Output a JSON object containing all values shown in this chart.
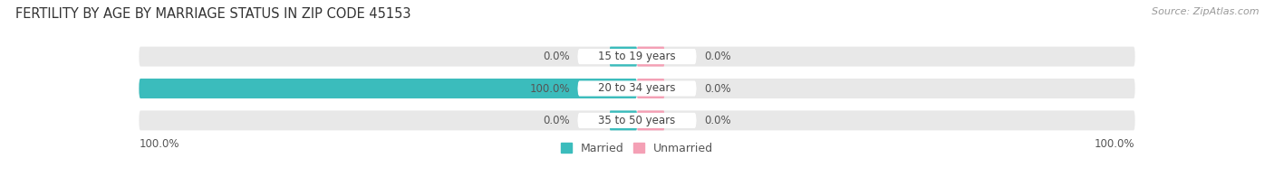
{
  "title": "FERTILITY BY AGE BY MARRIAGE STATUS IN ZIP CODE 45153",
  "source": "Source: ZipAtlas.com",
  "categories": [
    "15 to 19 years",
    "20 to 34 years",
    "35 to 50 years"
  ],
  "married_pct": [
    0.0,
    100.0,
    0.0
  ],
  "unmarried_pct": [
    0.0,
    0.0,
    0.0
  ],
  "married_color": "#3bbcbc",
  "unmarried_color": "#f4a0b5",
  "bar_bg_color": "#e8e8e8",
  "married_color_label": [
    "0.0%",
    "100.0%",
    "0.0%"
  ],
  "unmarried_color_label": [
    "0.0%",
    "0.0%",
    "0.0%"
  ],
  "bottom_left_label": "100.0%",
  "bottom_right_label": "100.0%",
  "title_fontsize": 10.5,
  "label_fontsize": 8.5,
  "legend_fontsize": 9,
  "source_fontsize": 8,
  "background_color": "#ffffff"
}
